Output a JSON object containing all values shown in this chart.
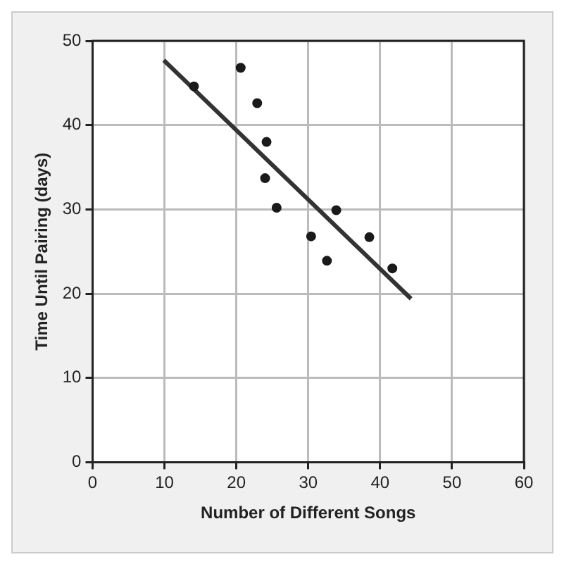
{
  "chart_data": {
    "type": "scatter",
    "xlabel": "Number of Different Songs",
    "ylabel": "Time Until Pairing (days)",
    "xlim": [
      0,
      60
    ],
    "xticks": [
      0,
      10,
      20,
      30,
      40,
      50,
      60
    ],
    "ylim": [
      0,
      50
    ],
    "yticks": [
      0,
      10,
      20,
      30,
      40,
      50
    ],
    "grid": true,
    "series": [
      {
        "color": "#1a1a1a",
        "marker": "circle",
        "x": [
          14.1,
          20.6,
          22.9,
          24.2,
          24.0,
          25.6,
          30.4,
          32.6,
          33.9,
          38.5,
          41.7
        ],
        "values": [
          44.6,
          46.8,
          42.6,
          38.0,
          33.7,
          30.2,
          26.8,
          23.9,
          29.9,
          26.7,
          23.0
        ]
      },
      {
        "type": "line",
        "color": "#333333",
        "marker": "none",
        "line_style": "solid",
        "x": [
          9.9,
          44.3
        ],
        "values": [
          47.7,
          19.4
        ]
      }
    ]
  }
}
